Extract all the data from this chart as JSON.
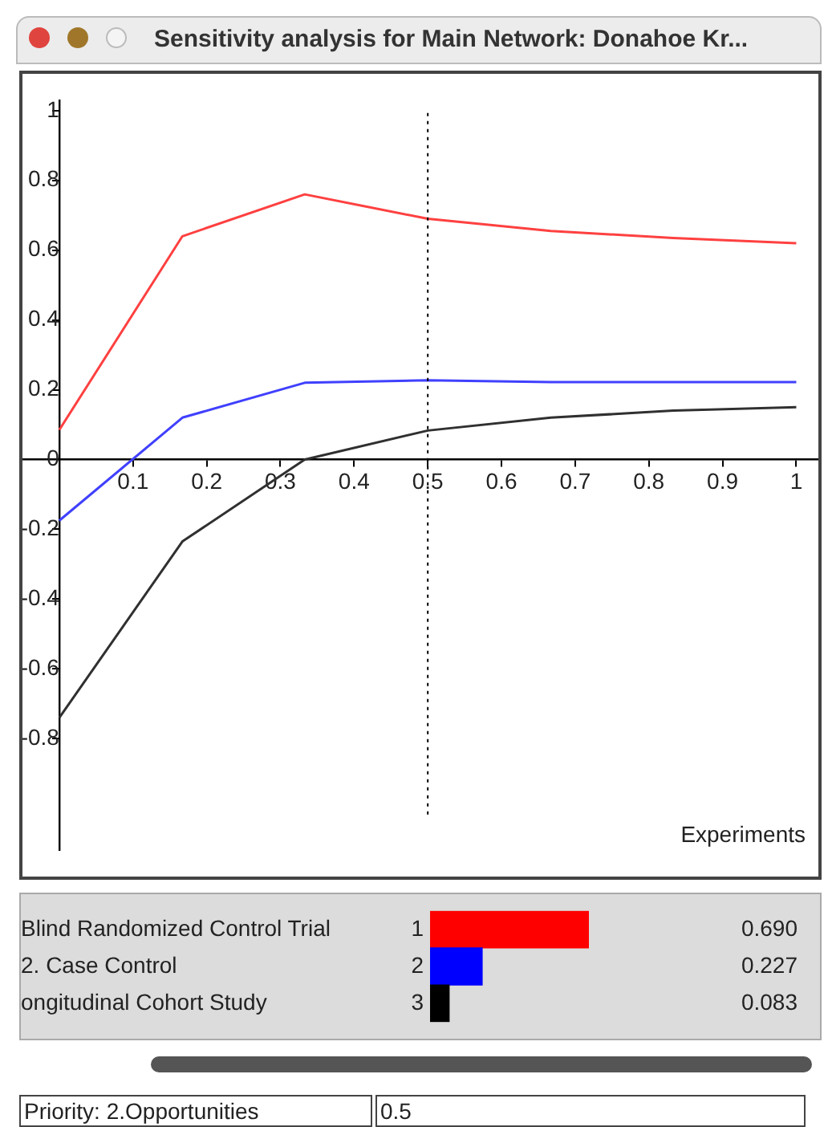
{
  "chart_data": [
    {
      "type": "line",
      "title": "Sensitivity analysis for Main Network: Donahoe Kr...",
      "xlabel": "Experiments",
      "x": [
        0,
        0.167,
        0.333,
        0.5,
        0.667,
        0.833,
        1
      ],
      "series": [
        {
          "color": "#ff4040",
          "values": [
            0.085,
            0.64,
            0.76,
            0.69,
            0.655,
            0.635,
            0.62
          ]
        },
        {
          "color": "#4040ff",
          "values": [
            -0.175,
            0.12,
            0.22,
            0.227,
            0.222,
            0.222,
            0.222
          ]
        },
        {
          "color": "#303030",
          "values": [
            -0.74,
            -0.235,
            0,
            0.083,
            0.12,
            0.14,
            0.15
          ]
        }
      ],
      "xlim": [
        -0.05,
        1.03
      ],
      "ylim": [
        -1.12,
        1.03
      ],
      "xticks": [
        0.1,
        0.2,
        0.3,
        0.4,
        0.5,
        0.6,
        0.7,
        0.8,
        0.9,
        1
      ],
      "yticks": [
        -0.8,
        -0.6,
        -0.4,
        -0.2,
        0,
        0.2,
        0.4,
        0.6,
        0.8,
        1
      ],
      "grid": false,
      "legend": false,
      "line_style": "solid",
      "marker": "none",
      "ref_lines": [
        {
          "axis": "x",
          "value": 0.5,
          "color": "#000000",
          "line_style": "dotted"
        }
      ],
      "annotations": [
        "Priority: 2.Opportunities",
        "0.5"
      ]
    },
    {
      "type": "bar",
      "orientation": "horizontal",
      "categories": [
        "Blind Randomized Control Trial",
        "2. Case Control",
        "ongitudinal Cohort Study"
      ],
      "values": [
        0.69,
        0.227,
        0.083
      ],
      "colors": [
        "#ff0000",
        "#0000ff",
        "#000000"
      ],
      "value_labels": [
        "0.690",
        "0.227",
        "0.083"
      ],
      "tick_labels": "y",
      "legend": false,
      "annotations": [
        "1",
        "2",
        "3"
      ]
    }
  ]
}
